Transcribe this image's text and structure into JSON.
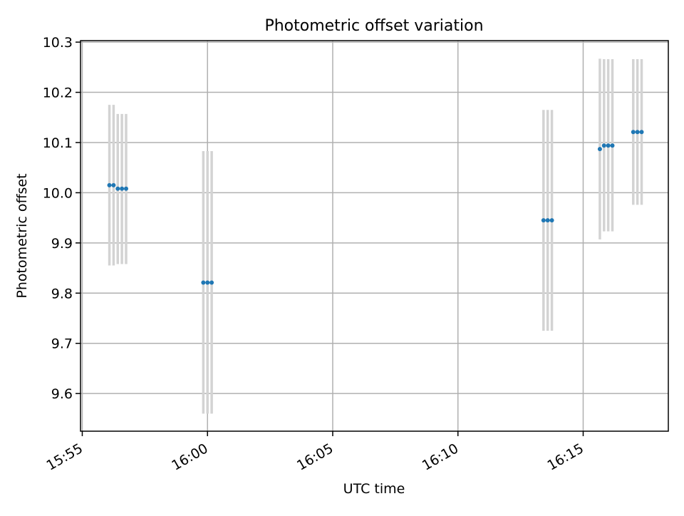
{
  "chart_data": {
    "type": "scatter",
    "title": "Photometric offset variation",
    "xlabel": "UTC time",
    "ylabel": "Photometric offset",
    "x_unit": "UTC (HH:MM)",
    "xlim": [
      "15:54.93",
      "16:18.4"
    ],
    "ylim": [
      9.525,
      10.303
    ],
    "x_ticks": [
      "15:55",
      "16:00",
      "16:05",
      "16:10",
      "16:15"
    ],
    "y_ticks": [
      "9.6",
      "9.7",
      "9.8",
      "9.9",
      "10.0",
      "10.1",
      "10.2",
      "10.3"
    ],
    "grid": true,
    "points": [
      {
        "x": "15:56:05",
        "y": 10.015,
        "err_low": 9.855,
        "err_high": 10.175
      },
      {
        "x": "15:56:15",
        "y": 10.015,
        "err_low": 9.855,
        "err_high": 10.175
      },
      {
        "x": "15:56:25",
        "y": 10.008,
        "err_low": 9.858,
        "err_high": 10.157
      },
      {
        "x": "15:56:35",
        "y": 10.008,
        "err_low": 9.858,
        "err_high": 10.157
      },
      {
        "x": "15:56:45",
        "y": 10.008,
        "err_low": 9.858,
        "err_high": 10.157
      },
      {
        "x": "15:59:50",
        "y": 9.821,
        "err_low": 9.56,
        "err_high": 10.083
      },
      {
        "x": "16:00:00",
        "y": 9.821,
        "err_low": 9.56,
        "err_high": 10.083
      },
      {
        "x": "16:00:10",
        "y": 9.821,
        "err_low": 9.56,
        "err_high": 10.083
      },
      {
        "x": "16:13:25",
        "y": 9.945,
        "err_low": 9.725,
        "err_high": 10.165
      },
      {
        "x": "16:13:35",
        "y": 9.945,
        "err_low": 9.725,
        "err_high": 10.165
      },
      {
        "x": "16:13:45",
        "y": 9.945,
        "err_low": 9.725,
        "err_high": 10.165
      },
      {
        "x": "16:15:40",
        "y": 10.087,
        "err_low": 9.907,
        "err_high": 10.267
      },
      {
        "x": "16:15:50",
        "y": 10.094,
        "err_low": 9.923,
        "err_high": 10.266
      },
      {
        "x": "16:16:00",
        "y": 10.094,
        "err_low": 9.923,
        "err_high": 10.266
      },
      {
        "x": "16:16:10",
        "y": 10.094,
        "err_low": 9.923,
        "err_high": 10.266
      },
      {
        "x": "16:17:00",
        "y": 10.121,
        "err_low": 9.976,
        "err_high": 10.266
      },
      {
        "x": "16:17:10",
        "y": 10.121,
        "err_low": 9.976,
        "err_high": 10.266
      },
      {
        "x": "16:17:20",
        "y": 10.121,
        "err_low": 9.976,
        "err_high": 10.266
      }
    ],
    "colors": {
      "marker": "#1f77b4",
      "errorbar": "#d3d3d3",
      "grid": "#b0b0b0",
      "axes": "#000000"
    }
  }
}
